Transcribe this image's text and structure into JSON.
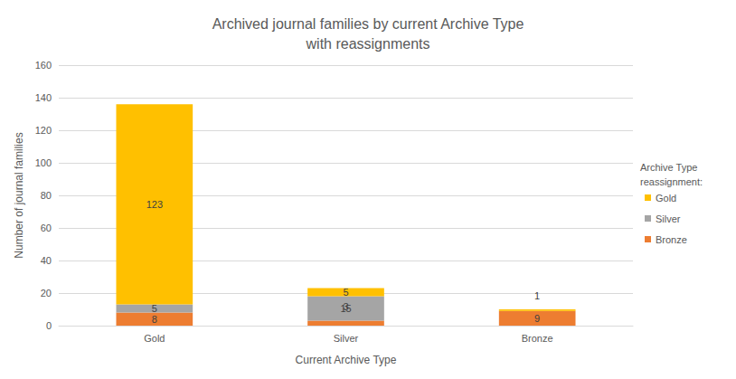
{
  "chart_data": {
    "type": "bar",
    "title": "Archived journal families by current Archive Type\nwith reassignments",
    "x_label": "Current Archive Type",
    "y_label": "Number of journal families",
    "legend_title": "Archive Type reassignment:",
    "categories": [
      "Gold",
      "Silver",
      "Bronze"
    ],
    "series": [
      {
        "name": "Bronze",
        "color": "#ed7d31",
        "values": [
          8,
          3,
          9
        ]
      },
      {
        "name": "Silver",
        "color": "#a5a5a5",
        "values": [
          5,
          15,
          null
        ]
      },
      {
        "name": "Gold",
        "color": "#ffc000",
        "values": [
          123,
          5,
          1
        ]
      }
    ],
    "legend_order": [
      "Gold",
      "Silver",
      "Bronze"
    ],
    "ylim": [
      0,
      160
    ],
    "yticks": [
      0,
      20,
      40,
      60,
      80,
      100,
      120,
      140,
      160
    ],
    "grid": true,
    "stacked": true,
    "data_labels": true,
    "legend": "right"
  }
}
